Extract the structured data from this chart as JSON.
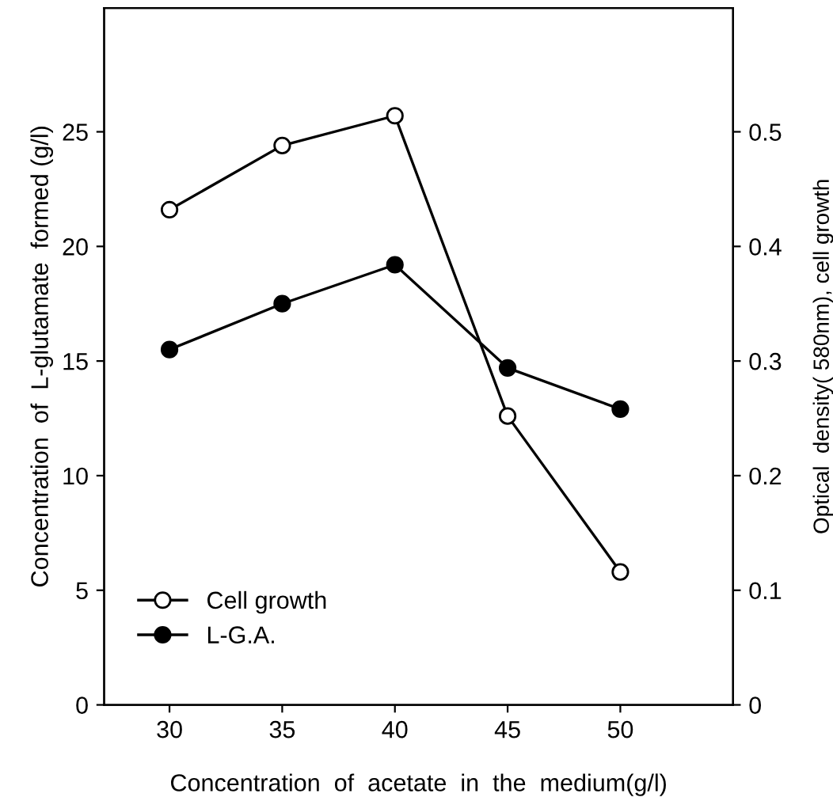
{
  "chart_data": {
    "type": "line",
    "xlabel": "Concentration  of  acetate  in  the  medium(g/l)",
    "ylabel": "Concentration  of  L-glutamate  formed (g/l)",
    "y2label": "Optical  density( 580nm), cell growth",
    "x": [
      30,
      35,
      40,
      45,
      50
    ],
    "series": [
      {
        "name": "Cell growth",
        "color": "#000000",
        "axis": "y2",
        "marker": "open circle",
        "values": [
          0.432,
          0.488,
          0.514,
          0.252,
          0.116
        ]
      },
      {
        "name": "L-G.A.",
        "color": "#000000",
        "marker": "circle",
        "values": [
          15.5,
          17.5,
          19.2,
          14.7,
          12.9
        ]
      }
    ],
    "xlim": [
      27.1,
      55
    ],
    "xticks": [
      30,
      35,
      40,
      45,
      50
    ],
    "ylim": [
      0,
      30.4
    ],
    "yticks": [
      0,
      5,
      10,
      15,
      20,
      25
    ],
    "y2lim": [
      0,
      0.608
    ],
    "y2ticks": [
      {
        "value": 0,
        "label": "0"
      },
      0.1,
      0.2,
      0.3,
      0.4,
      0.5
    ],
    "legend": "bottom left",
    "grid": false,
    "line_style": "solid"
  }
}
